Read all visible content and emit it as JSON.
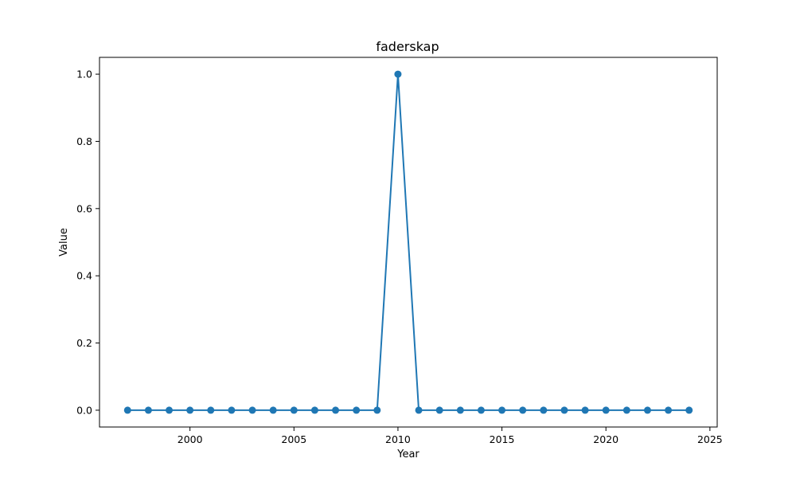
{
  "chart_data": {
    "type": "line",
    "title": "faderskap",
    "xlabel": "Year",
    "ylabel": "Value",
    "xlim": [
      1995.65,
      2025.35
    ],
    "ylim": [
      -0.05,
      1.05
    ],
    "xticks": [
      2000,
      2005,
      2010,
      2015,
      2020,
      2025
    ],
    "xtick_labels": [
      "2000",
      "2005",
      "2010",
      "2015",
      "2020",
      "2025"
    ],
    "yticks": [
      0.0,
      0.2,
      0.4,
      0.6,
      0.8,
      1.0
    ],
    "ytick_labels": [
      "0.0",
      "0.2",
      "0.4",
      "0.6",
      "0.8",
      "1.0"
    ],
    "grid": false,
    "legend": "none",
    "series": [
      {
        "color": "#1f77b4",
        "marker": "circle",
        "x": [
          1997,
          1998,
          1999,
          2000,
          2001,
          2002,
          2003,
          2004,
          2005,
          2006,
          2007,
          2008,
          2009,
          2010,
          2011,
          2012,
          2013,
          2014,
          2015,
          2016,
          2017,
          2018,
          2019,
          2020,
          2021,
          2022,
          2023,
          2024
        ],
        "y": [
          0,
          0,
          0,
          0,
          0,
          0,
          0,
          0,
          0,
          0,
          0,
          0,
          0,
          1,
          0,
          0,
          0,
          0,
          0,
          0,
          0,
          0,
          0,
          0,
          0,
          0,
          0,
          0
        ]
      }
    ]
  }
}
